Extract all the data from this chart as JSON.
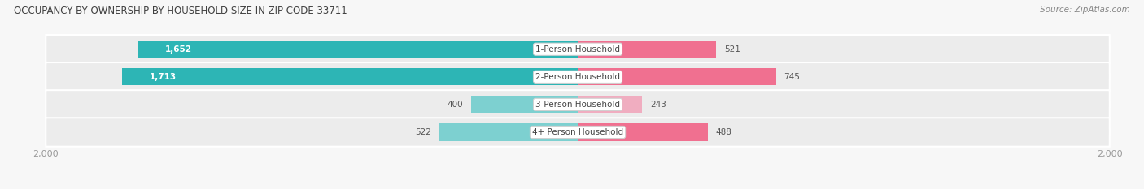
{
  "title": "OCCUPANCY BY OWNERSHIP BY HOUSEHOLD SIZE IN ZIP CODE 33711",
  "source": "Source: ZipAtlas.com",
  "categories": [
    "1-Person Household",
    "2-Person Household",
    "3-Person Household",
    "4+ Person Household"
  ],
  "owner_values": [
    1652,
    1713,
    400,
    522
  ],
  "renter_values": [
    521,
    745,
    243,
    488
  ],
  "max_scale": 2000,
  "owner_color_dark": "#2db5b5",
  "owner_color_light": "#7dd0d0",
  "renter_color_dark": "#f07090",
  "renter_color_light": "#f0adc0",
  "row_bg_color": "#ececec",
  "label_color": "#555555",
  "title_color": "#404040",
  "axis_label_color": "#999999",
  "fig_bg": "#f7f7f7"
}
